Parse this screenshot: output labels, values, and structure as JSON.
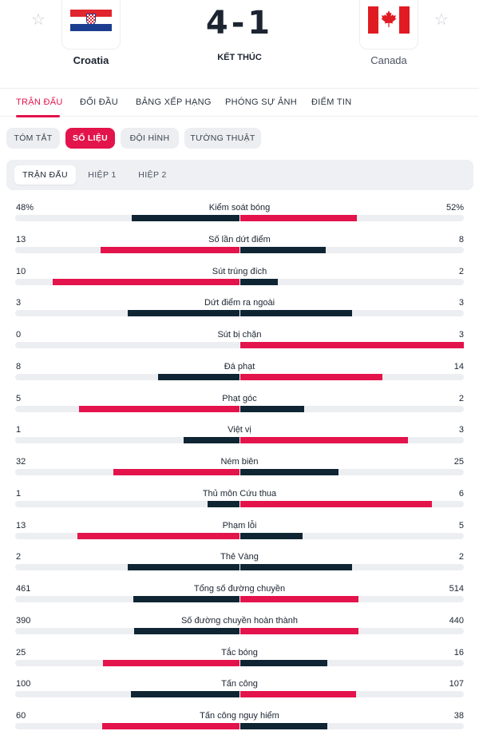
{
  "match": {
    "home": {
      "name": "Croatia"
    },
    "away": {
      "name": "Canada"
    },
    "score": "4-1",
    "status": "KẾT THÚC",
    "fav_icon": "☆"
  },
  "nav": {
    "items": [
      {
        "label": "TRẬN ĐẤU",
        "active": true
      },
      {
        "label": "ĐỐI ĐẦU"
      },
      {
        "label": "BẢNG XẾP HẠNG"
      },
      {
        "label": "PHÓNG SỰ ẢNH"
      },
      {
        "label": "ĐIỂM TIN"
      }
    ]
  },
  "subtabs": {
    "items": [
      {
        "label": "TÓM TẮT"
      },
      {
        "label": "SỐ LIỆU",
        "active": true
      },
      {
        "label": "ĐỘI HÌNH"
      },
      {
        "label": "TƯỜNG THUẬT"
      }
    ]
  },
  "periods": {
    "items": [
      {
        "label": "TRẬN ĐẤU",
        "active": true
      },
      {
        "label": "HIỆP 1"
      },
      {
        "label": "HIỆP 2"
      }
    ]
  },
  "colors": {
    "accent": "#e3134b",
    "dark": "#0f2533",
    "track": "#eceef1"
  },
  "stats": [
    {
      "label": "Kiểm soát bóng",
      "home": "48%",
      "away": "52%",
      "home_share": 0.48,
      "away_share": 0.52
    },
    {
      "label": "Số lần dứt điểm",
      "home": "13",
      "away": "8"
    },
    {
      "label": "Sút trúng đích",
      "home": "10",
      "away": "2"
    },
    {
      "label": "Dứt điểm ra ngoài",
      "home": "3",
      "away": "3"
    },
    {
      "label": "Sút bị chặn",
      "home": "0",
      "away": "3"
    },
    {
      "label": "Đá phạt",
      "home": "8",
      "away": "14"
    },
    {
      "label": "Phạt góc",
      "home": "5",
      "away": "2"
    },
    {
      "label": "Việt vị",
      "home": "1",
      "away": "3"
    },
    {
      "label": "Ném biên",
      "home": "32",
      "away": "25"
    },
    {
      "label": "Thủ môn Cứu thua",
      "home": "1",
      "away": "6"
    },
    {
      "label": "Phạm lỗi",
      "home": "13",
      "away": "5"
    },
    {
      "label": "Thẻ Vàng",
      "home": "2",
      "away": "2"
    },
    {
      "label": "Tổng số đường chuyền",
      "home": "461",
      "away": "514"
    },
    {
      "label": "Số đường chuyền hoàn thành",
      "home": "390",
      "away": "440"
    },
    {
      "label": "Tắc bóng",
      "home": "25",
      "away": "16"
    },
    {
      "label": "Tấn công",
      "home": "100",
      "away": "107"
    },
    {
      "label": "Tấn công nguy hiểm",
      "home": "60",
      "away": "38"
    }
  ]
}
